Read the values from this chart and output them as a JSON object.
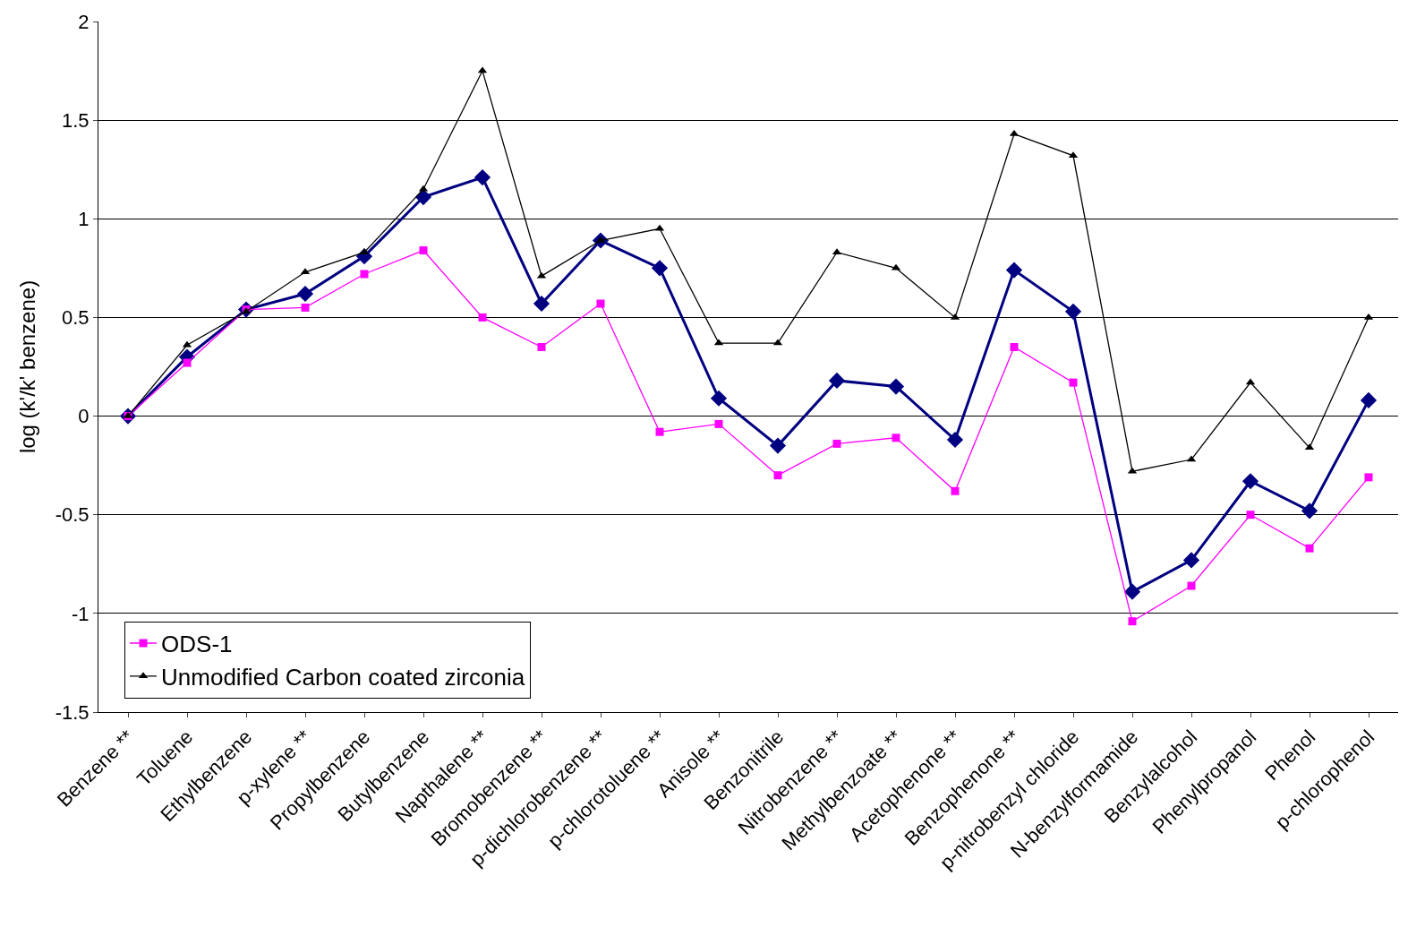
{
  "chart_data": {
    "type": "line",
    "ylabel": "log (k'/k' benzene)",
    "categories": [
      "Benzene **",
      "Toluene",
      "Ethylbenzene",
      "p-xylene **",
      "Propylbenzene",
      "Butylbenzene",
      "Napthalene **",
      "Bromobenzene **",
      "p-dichlorobenzene **",
      "p-chlorotoluene **",
      "Anisole **",
      "Benzonitrile",
      "Nitrobenzene **",
      "Methylbenzoate **",
      "Acetophenone **",
      "Benzophenone **",
      "p-nitrobenzyl chloride",
      "N-benzylformamide",
      "Benzylalcohol",
      "Phenylpropanol",
      "Phenol",
      "p-chlorophenol"
    ],
    "series": [
      {
        "color": "#000080",
        "marker": "diamond",
        "values": [
          0,
          0.3,
          0.54,
          0.62,
          0.81,
          1.11,
          1.21,
          0.57,
          0.89,
          0.75,
          0.09,
          -0.15,
          0.18,
          0.15,
          -0.12,
          0.74,
          0.53,
          -0.89,
          -0.73,
          -0.33,
          -0.48,
          0.08
        ]
      },
      {
        "name": "ODS-1",
        "color": "#ff00ff",
        "marker": "square",
        "values": [
          0,
          0.27,
          0.54,
          0.55,
          0.72,
          0.84,
          0.5,
          0.35,
          0.57,
          -0.08,
          -0.04,
          -0.3,
          -0.14,
          -0.11,
          -0.38,
          0.35,
          0.17,
          -1.04,
          -0.86,
          -0.5,
          -0.67,
          -0.31
        ]
      },
      {
        "name": "Unmodified Carbon coated zirconia",
        "color": "#000000",
        "marker": "triangle",
        "values": [
          0,
          0.36,
          0.53,
          0.73,
          0.83,
          1.15,
          1.75,
          0.71,
          0.89,
          0.95,
          0.37,
          0.37,
          0.83,
          0.75,
          0.5,
          1.43,
          1.32,
          -0.28,
          -0.22,
          0.17,
          -0.16,
          0.5
        ]
      }
    ],
    "ylim": [
      -1.5,
      2
    ],
    "yticks": [
      -1.5,
      -1,
      -0.5,
      0,
      0.5,
      1,
      1.5,
      2
    ],
    "grid": "y",
    "legend": "bottom left"
  }
}
